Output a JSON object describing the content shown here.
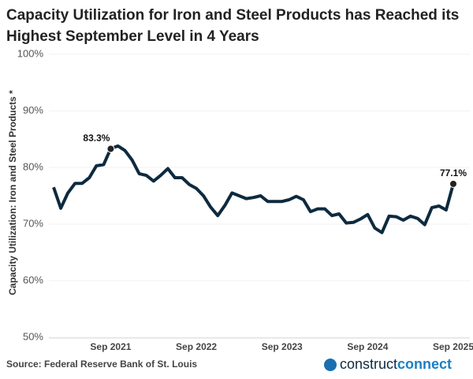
{
  "chart_data": {
    "type": "line",
    "title": [
      "Capacity Utilization for Iron and Steel Products has Reached its",
      "Highest September Level in 4 Years"
    ],
    "y_label": "Capacity Utilization: Iron and Steel Products *",
    "source": "Source: Federal Reserve Bank of St. Louis",
    "logo": [
      "construct",
      "connect"
    ],
    "categories": [
      null,
      null,
      null,
      null,
      null,
      null,
      null,
      null,
      "Sep 2021",
      null,
      null,
      null,
      null,
      null,
      null,
      null,
      null,
      null,
      null,
      null,
      "Sep 2022",
      null,
      null,
      null,
      null,
      null,
      null,
      null,
      null,
      null,
      null,
      null,
      "Sep 2023",
      null,
      null,
      null,
      null,
      null,
      null,
      null,
      null,
      null,
      null,
      null,
      "Sep 2024",
      null,
      null,
      null,
      null,
      null,
      null,
      null,
      null,
      null,
      null,
      null,
      "Sep 2025"
    ],
    "series": [
      {
        "color": "#0d2a3f",
        "values": [
          76.5,
          72.8,
          75.5,
          77.2,
          77.2,
          78.2,
          80.3,
          80.5,
          83.3,
          83.8,
          83.0,
          81.3,
          78.9,
          78.6,
          77.6,
          78.6,
          79.8,
          78.2,
          78.2,
          77.0,
          76.3,
          75.0,
          73.0,
          71.5,
          73.3,
          75.5,
          75.0,
          74.5,
          74.7,
          75.0,
          74.0,
          74.0,
          74.0,
          74.3,
          74.9,
          74.3,
          72.2,
          72.7,
          72.7,
          71.5,
          71.8,
          70.2,
          70.3,
          70.9,
          71.7,
          69.3,
          68.5,
          71.4,
          71.3,
          70.7,
          71.4,
          71.0,
          69.9,
          72.9,
          73.2,
          72.5,
          77.1
        ],
        "value_labels": [
          null,
          null,
          null,
          null,
          null,
          null,
          null,
          null,
          "83.3%",
          null,
          null,
          null,
          null,
          null,
          null,
          null,
          null,
          null,
          null,
          null,
          null,
          null,
          null,
          null,
          null,
          null,
          null,
          null,
          null,
          null,
          null,
          null,
          null,
          null,
          null,
          null,
          null,
          null,
          null,
          null,
          null,
          null,
          null,
          null,
          null,
          null,
          null,
          null,
          null,
          null,
          null,
          null,
          null,
          null,
          null,
          null,
          "77.1%"
        ]
      }
    ],
    "ylim": [
      50,
      100
    ],
    "yticks": [
      {
        "value": 50,
        "label": "50%"
      },
      {
        "value": 60,
        "label": "60%"
      },
      {
        "value": 70,
        "label": "70%"
      },
      {
        "value": 80,
        "label": "80%"
      },
      {
        "value": 90,
        "label": "90%"
      },
      {
        "value": 100,
        "label": "100%"
      }
    ],
    "grid": true
  }
}
